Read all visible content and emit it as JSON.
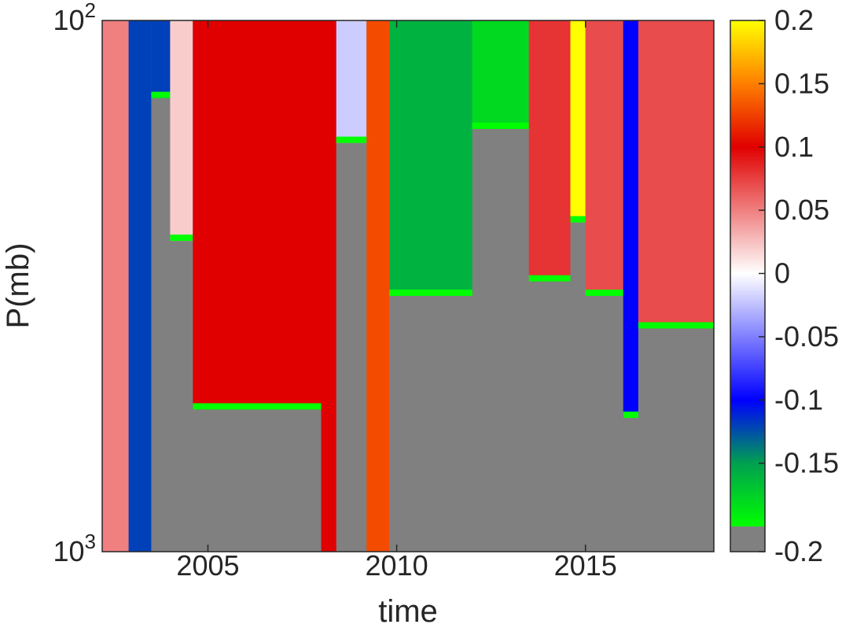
{
  "chart_data": {
    "type": "heatmap",
    "title": "",
    "xlabel": "time",
    "ylabel": "P(mb)",
    "x_range": [
      2002.2,
      2018.4
    ],
    "y_range_mb": [
      100,
      1000
    ],
    "y_scale": "log",
    "y_direction": "reversed (100 at top)",
    "x_ticks": [
      {
        "value": 2005,
        "label": "2005"
      },
      {
        "value": 2010,
        "label": "2010"
      },
      {
        "value": 2015,
        "label": "2015"
      }
    ],
    "y_ticks": [
      {
        "value": 100,
        "base": "10",
        "exponent": "2"
      },
      {
        "value": 1000,
        "base": "10",
        "exponent": "3"
      }
    ],
    "masked_color": "#808080",
    "colorbar": {
      "range": [
        -0.2,
        0.2
      ],
      "position": "right",
      "ticks": [
        {
          "value": 0.2,
          "label": "0.2"
        },
        {
          "value": 0.15,
          "label": "0.15"
        },
        {
          "value": 0.1,
          "label": "0.1"
        },
        {
          "value": 0.05,
          "label": "0.05"
        },
        {
          "value": 0,
          "label": "0"
        },
        {
          "value": -0.05,
          "label": "-0.05"
        },
        {
          "value": -0.1,
          "label": "-0.1"
        },
        {
          "value": -0.15,
          "label": "-0.15"
        },
        {
          "value": -0.2,
          "label": "-0.2"
        }
      ],
      "colormap_stops": [
        {
          "value": -0.2,
          "color": "#00ff00"
        },
        {
          "value": -0.15,
          "color": "#00a050"
        },
        {
          "value": -0.1,
          "color": "#0000ff"
        },
        {
          "value": 0,
          "color": "#ffffff"
        },
        {
          "value": 0.1,
          "color": "#e00000"
        },
        {
          "value": 0.15,
          "color": "#ff7f00"
        },
        {
          "value": 0.2,
          "color": "#ffff00"
        }
      ]
    },
    "features": [
      {
        "x_start": 2002.2,
        "x_end": 2002.9,
        "value": 0.05,
        "p_bottom": 1000
      },
      {
        "x_start": 2002.9,
        "x_end": 2003.5,
        "value": -0.12,
        "p_bottom": 1000
      },
      {
        "x_start": 2003.5,
        "x_end": 2004.0,
        "value": -0.12,
        "p_bottom": 140
      },
      {
        "x_start": 2004.0,
        "x_end": 2004.6,
        "value": 0.02,
        "p_bottom": 260
      },
      {
        "x_start": 2004.6,
        "x_end": 2008.0,
        "value": 0.1,
        "p_bottom": 540
      },
      {
        "x_start": 2008.0,
        "x_end": 2008.4,
        "value": 0.1,
        "p_bottom": 1000
      },
      {
        "x_start": 2008.4,
        "x_end": 2009.2,
        "value": -0.02,
        "p_bottom": 170
      },
      {
        "x_start": 2009.2,
        "x_end": 2009.8,
        "value": 0.13,
        "p_bottom": 1000
      },
      {
        "x_start": 2009.8,
        "x_end": 2012.0,
        "value": -0.16,
        "p_bottom": 330
      },
      {
        "x_start": 2012.0,
        "x_end": 2013.5,
        "value": -0.18,
        "p_bottom": 160
      },
      {
        "x_start": 2013.5,
        "x_end": 2014.6,
        "value": 0.08,
        "p_bottom": 310
      },
      {
        "x_start": 2014.6,
        "x_end": 2015.0,
        "value": 0.2,
        "p_bottom": 240
      },
      {
        "x_start": 2015.0,
        "x_end": 2016.0,
        "value": 0.07,
        "p_bottom": 330
      },
      {
        "x_start": 2016.0,
        "x_end": 2016.4,
        "value": -0.1,
        "p_bottom": 560
      },
      {
        "x_start": 2016.4,
        "x_end": 2018.4,
        "value": 0.07,
        "p_bottom": 380
      }
    ]
  }
}
